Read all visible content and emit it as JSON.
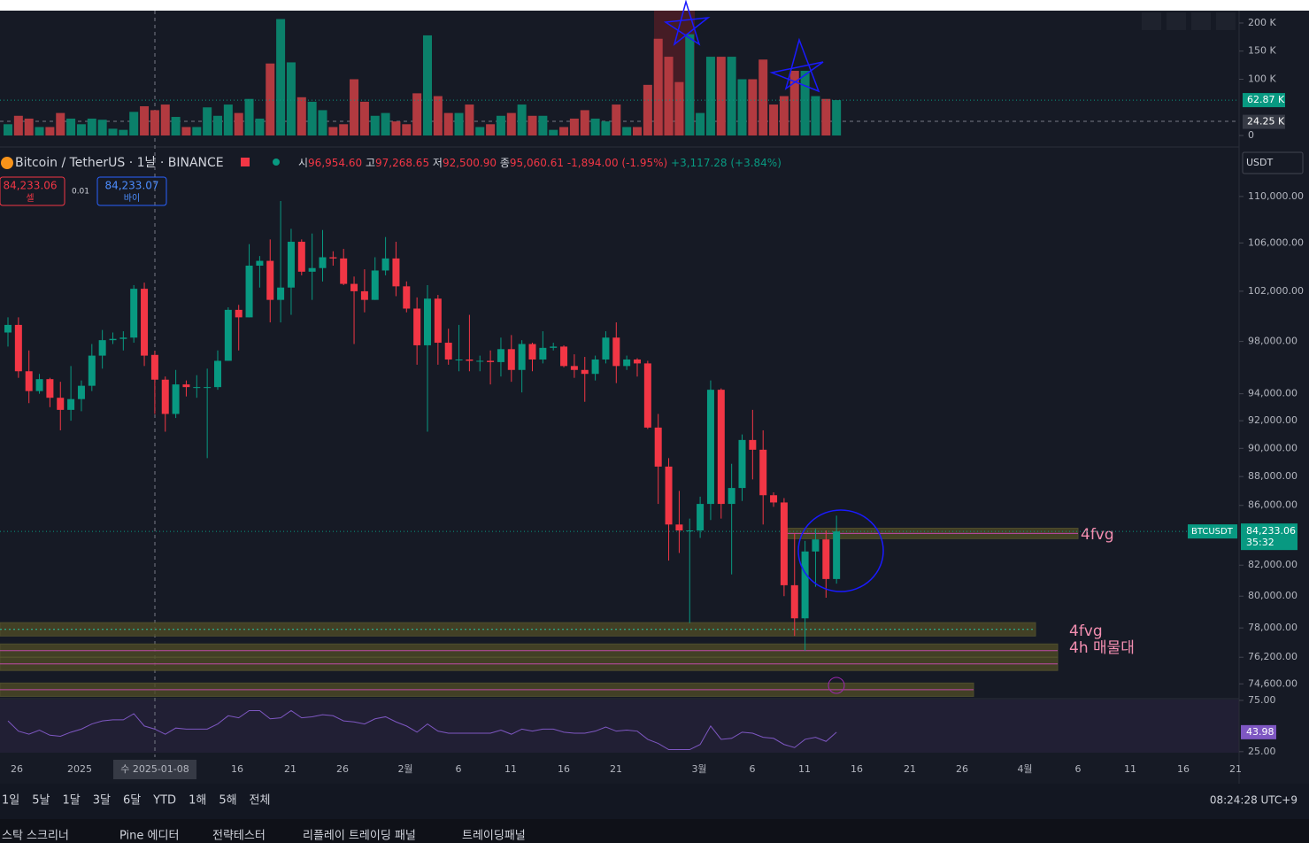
{
  "chart_data": {
    "type": "candlestick",
    "title": "Bitcoin / TetherUS · 1날 · BINANCE",
    "header": {
      "labels": [
        "시",
        "고",
        "저",
        "종"
      ],
      "values": [
        "96,954.60",
        "97,268.65",
        "92,500.90",
        "95,060.61"
      ],
      "change": "-1,894.00 (-1.95%)",
      "change2": "+3,117.28 (+3.84%)"
    },
    "sell": {
      "price": "84,233.06",
      "label": "셀"
    },
    "size": "0.01",
    "buy": {
      "price": "84,233.07",
      "label": "바이"
    },
    "currency": "USDT",
    "symbol": "BTCUSDT",
    "price_label": "84,233.06",
    "countdown": "35:32",
    "current_price": 84233.06,
    "log_scale": true,
    "ylim": [
      73830,
      114100
    ],
    "yticks": [
      {
        "value": 110000,
        "label": "110,000.00"
      },
      {
        "value": 106000,
        "label": "106,000.00"
      },
      {
        "value": 102000,
        "label": "102,000.00"
      },
      {
        "value": 98000,
        "label": "98,000.00"
      },
      {
        "value": 94000,
        "label": "94,000.00"
      },
      {
        "value": 92000,
        "label": "92,000.00"
      },
      {
        "value": 90000,
        "label": "90,000.00"
      },
      {
        "value": 88000,
        "label": "88,000.00"
      },
      {
        "value": 86000,
        "label": "86,000.00"
      },
      {
        "value": 82000,
        "label": "82,000.00"
      },
      {
        "value": 80000,
        "label": "80,000.00"
      },
      {
        "value": 78000,
        "label": "78,000.00"
      },
      {
        "value": 76200,
        "label": "76,200.00"
      },
      {
        "value": 74600,
        "label": "74,600.00"
      }
    ],
    "up_color": "#089981",
    "down_color": "#f23645",
    "open": [
      98700,
      99300,
      95700,
      94200,
      95100,
      93700,
      92800,
      93600,
      94600,
      96900,
      98100,
      98200,
      98300,
      102200,
      96954.6,
      95060.61,
      92500,
      94700,
      94500,
      94500,
      94500,
      96500,
      100500,
      99900,
      104100,
      104500,
      101300,
      102300,
      106100,
      103600,
      103900,
      104800,
      104700,
      102600,
      102000,
      101300,
      103700,
      104700,
      102400,
      100600,
      97700,
      101400,
      97900,
      96600,
      96600,
      96500,
      96500,
      96400,
      97400,
      95800,
      97800,
      96600,
      97500,
      97600,
      96100,
      95800,
      95500,
      96600,
      98300,
      96100,
      96600,
      96300,
      91500,
      88700,
      84700,
      84300,
      84300,
      86100,
      94300,
      86100,
      87200,
      90600,
      89900,
      86700,
      86200,
      80700,
      78600,
      82900,
      83700,
      81100
    ],
    "high": [
      99900,
      99900,
      97300,
      95500,
      95200,
      94900,
      96100,
      95000,
      97800,
      98900,
      98700,
      98800,
      102500,
      102700,
      97268.65,
      95300,
      95800,
      95000,
      95400,
      95900,
      97300,
      100700,
      100900,
      105900,
      104900,
      106300,
      109600,
      107200,
      106300,
      106800,
      107100,
      105300,
      105500,
      103200,
      103800,
      104800,
      106500,
      106100,
      102800,
      101500,
      102500,
      101700,
      99000,
      99300,
      100100,
      96900,
      97300,
      98300,
      98500,
      98100,
      97900,
      98800,
      97900,
      97700,
      97000,
      96800,
      96900,
      98800,
      99500,
      96900,
      96700,
      96500,
      92500,
      89300,
      87000,
      85100,
      86600,
      95000,
      94400,
      88900,
      91000,
      92800,
      91300,
      86900,
      86500,
      84100,
      83600,
      84400,
      84300,
      85300
    ],
    "low": [
      97600,
      95200,
      93300,
      94000,
      93000,
      91300,
      92000,
      92700,
      94200,
      95900,
      97800,
      97300,
      97900,
      96100,
      92500.9,
      91200,
      92200,
      93800,
      93700,
      89300,
      94300,
      96500,
      97300,
      99900,
      102300,
      99500,
      99500,
      100100,
      103300,
      101300,
      102800,
      104100,
      102500,
      97800,
      100300,
      101300,
      103300,
      101600,
      100300,
      96200,
      91200,
      96200,
      96200,
      95700,
      95700,
      95700,
      94700,
      95300,
      94900,
      94100,
      95700,
      96300,
      97300,
      96000,
      95200,
      93400,
      95000,
      96300,
      94800,
      95800,
      95300,
      91400,
      86100,
      82300,
      82800,
      78300,
      83800,
      85000,
      85100,
      81400,
      86300,
      87800,
      84700,
      85900,
      80000,
      77500,
      76600,
      80600,
      79900,
      80800
    ],
    "close": [
      99300,
      95700,
      94200,
      95100,
      93700,
      92800,
      93600,
      94600,
      96900,
      98100,
      98200,
      98300,
      102200,
      96900,
      95060.61,
      92500,
      94700,
      94500,
      94500,
      94500,
      96500,
      100500,
      99900,
      104100,
      104500,
      101300,
      102300,
      106100,
      103600,
      103900,
      104800,
      104700,
      102600,
      102000,
      101300,
      103700,
      104700,
      102400,
      100600,
      97700,
      101400,
      97900,
      96600,
      96600,
      96500,
      96500,
      96400,
      97400,
      95800,
      97800,
      96600,
      97500,
      97600,
      96100,
      95800,
      95500,
      96600,
      98300,
      96100,
      96600,
      96300,
      91500,
      88700,
      84700,
      84300,
      84300,
      86100,
      94300,
      86100,
      87200,
      90600,
      89900,
      86700,
      86200,
      80700,
      78600,
      82900,
      83700,
      81100,
      84233.06
    ],
    "zones": [
      {
        "top": 84450,
        "bottom": 83750
      },
      {
        "top": 78330,
        "bottom": 77500
      },
      {
        "top": 77010,
        "bottom": 76200
      },
      {
        "top": 76200,
        "bottom": 75400
      },
      {
        "top": 74650,
        "bottom": 73860
      }
    ],
    "annotations": [
      "4fvg",
      "4fvg",
      "4h 매물대"
    ],
    "volume": {
      "ylim": [
        0,
        222000
      ],
      "yticks": [
        0,
        {
          "value": 100000,
          "label": "100 K"
        },
        {
          "value": 150000,
          "label": "150 K"
        },
        {
          "value": 200000,
          "label": "200 K"
        }
      ],
      "values": [
        20000,
        35000,
        30000,
        15000,
        15000,
        40000,
        30000,
        20000,
        30000,
        28000,
        12000,
        10000,
        42000,
        52000,
        45000,
        55000,
        33000,
        15000,
        15000,
        50000,
        35000,
        55000,
        40000,
        65000,
        30000,
        128000,
        207000,
        130000,
        68000,
        60000,
        45000,
        15000,
        20000,
        100000,
        60000,
        35000,
        40000,
        25000,
        20000,
        75000,
        178000,
        70000,
        40000,
        40000,
        55000,
        15000,
        20000,
        35000,
        40000,
        55000,
        35000,
        35000,
        10000,
        15000,
        30000,
        45000,
        30000,
        25000,
        55000,
        15000,
        15000,
        90000,
        172000,
        140000,
        95000,
        180000,
        40000,
        140000,
        140000,
        140000,
        100000,
        100000,
        135000,
        55000,
        70000,
        115000,
        115000,
        70000,
        65000,
        62870
      ],
      "last_label": "62.87 K",
      "crosshair": {
        "value": 24250,
        "label": "24.25 K"
      }
    },
    "rsi": {
      "ylim": [
        24,
        75.8
      ],
      "yticks": [
        {
          "value": 75,
          "label": "75.00"
        },
        {
          "value": 25,
          "label": "25.00"
        }
      ],
      "color": "#7e57c2",
      "values": [
        55,
        45,
        42,
        46,
        41,
        40,
        44,
        47,
        52,
        55,
        56,
        56,
        62,
        50,
        47,
        42,
        48,
        47,
        47,
        47,
        52,
        60,
        58,
        65,
        65,
        57,
        58,
        65,
        58,
        59,
        61,
        60,
        55,
        54,
        52,
        57,
        59,
        54,
        50,
        44,
        52,
        45,
        43,
        43,
        43,
        43,
        43,
        46,
        42,
        47,
        45,
        47,
        47,
        44,
        43,
        43,
        45,
        49,
        45,
        46,
        45,
        37,
        33,
        27,
        27,
        27,
        32,
        50,
        37,
        38,
        44,
        43,
        39,
        38,
        32,
        29,
        37,
        39,
        35,
        43.98
      ]
    },
    "x_labels": [
      "26",
      "2025",
      "수 2025-01-08",
      "16",
      "21",
      "26",
      "2월",
      "6",
      "11",
      "16",
      "21",
      "3월",
      "6",
      "11",
      "16",
      "21",
      "26",
      "4월",
      "6",
      "11",
      "16",
      "21"
    ]
  },
  "toolbar": {
    "ranges": [
      "1일",
      "5날",
      "1달",
      "3달",
      "6달",
      "YTD",
      "1해",
      "5해",
      "전체"
    ],
    "clock": "08:24:28 UTC+9"
  },
  "tabs": [
    "스탁 스크리너",
    "Pine 에디터",
    "전략테스터",
    "리플레이 트레이딩 패널",
    "트레이딩패널"
  ]
}
